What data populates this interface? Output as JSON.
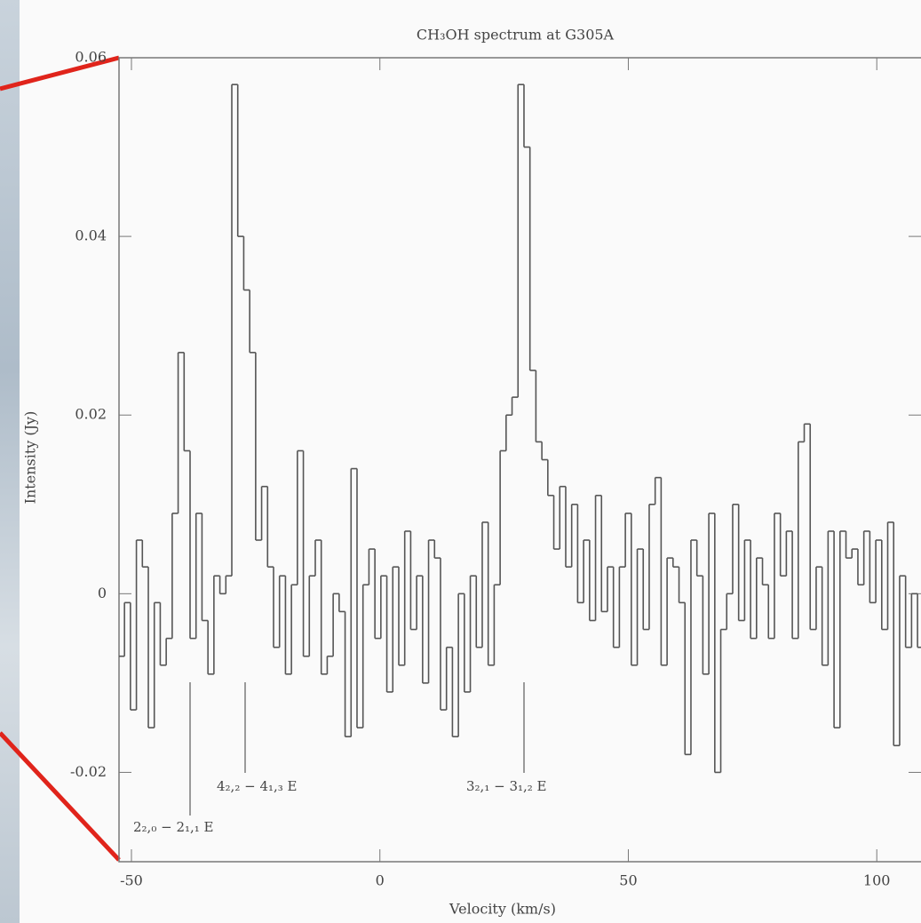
{
  "chart_data": {
    "type": "step",
    "title": "CH₃OH spectrum at G305A",
    "x_label": "Velocity (km/s)",
    "y_label": "Intensity (Jy)",
    "x": [
      -52.0,
      -50.8,
      -49.6,
      -48.4,
      -47.2,
      -46.0,
      -44.8,
      -43.6,
      -42.4,
      -41.2,
      -40.0,
      -38.8,
      -37.6,
      -36.4,
      -35.2,
      -34.0,
      -32.8,
      -31.6,
      -30.4,
      -29.2,
      -28.0,
      -26.8,
      -25.6,
      -24.4,
      -23.2,
      -22.0,
      -20.8,
      -19.6,
      -18.4,
      -17.2,
      -16.0,
      -14.8,
      -13.6,
      -12.4,
      -11.2,
      -10.0,
      -8.8,
      -7.6,
      -6.4,
      -5.2,
      -4.0,
      -2.8,
      -1.6,
      -0.4,
      0.8,
      2.0,
      3.2,
      4.4,
      5.6,
      6.8,
      8.0,
      9.2,
      10.4,
      11.6,
      12.8,
      14.0,
      15.2,
      16.4,
      17.6,
      18.8,
      20.0,
      21.2,
      22.4,
      23.6,
      24.8,
      26.0,
      27.2,
      28.4,
      29.6,
      30.8,
      32.0,
      33.2,
      34.4,
      35.6,
      36.8,
      38.0,
      39.2,
      40.4,
      41.6,
      42.8,
      44.0,
      45.2,
      46.4,
      47.6,
      48.8,
      50.0,
      51.2,
      52.4,
      53.6,
      54.8,
      56.0,
      57.2,
      58.4,
      59.6,
      60.8,
      62.0,
      63.2,
      64.4,
      65.6,
      66.8,
      68.0,
      69.2,
      70.4,
      71.6,
      72.8,
      74.0,
      75.2,
      76.4,
      77.6,
      78.8,
      80.0,
      81.2,
      82.4,
      83.6,
      84.8,
      86.0,
      87.2,
      88.4,
      89.6,
      90.8,
      92.0,
      93.2,
      94.4,
      95.6,
      96.8,
      98.0,
      99.2,
      100.4,
      101.6,
      102.8,
      104.0,
      105.2,
      106.4,
      107.6,
      108.8
    ],
    "values": [
      -0.007,
      -0.001,
      -0.013,
      0.006,
      0.003,
      -0.015,
      -0.001,
      -0.008,
      -0.005,
      0.009,
      0.027,
      0.016,
      -0.005,
      0.009,
      -0.003,
      -0.009,
      0.002,
      0.0,
      0.002,
      0.057,
      0.04,
      0.034,
      0.027,
      0.006,
      0.012,
      0.003,
      -0.006,
      0.002,
      -0.009,
      0.001,
      0.016,
      -0.007,
      0.002,
      0.006,
      -0.009,
      -0.007,
      0.0,
      -0.002,
      -0.016,
      0.014,
      -0.015,
      0.001,
      0.005,
      -0.005,
      0.002,
      -0.011,
      0.003,
      -0.008,
      0.007,
      -0.004,
      0.002,
      -0.01,
      0.006,
      0.004,
      -0.013,
      -0.006,
      -0.016,
      0.0,
      -0.011,
      0.002,
      -0.006,
      0.008,
      -0.008,
      0.001,
      0.016,
      0.02,
      0.022,
      0.057,
      0.05,
      0.025,
      0.017,
      0.015,
      0.011,
      0.005,
      0.012,
      0.003,
      0.01,
      -0.001,
      0.006,
      -0.003,
      0.011,
      -0.002,
      0.003,
      -0.006,
      0.003,
      0.009,
      -0.008,
      0.005,
      -0.004,
      0.01,
      0.013,
      -0.008,
      0.004,
      0.003,
      -0.001,
      -0.018,
      0.006,
      0.002,
      -0.009,
      0.009,
      -0.02,
      -0.004,
      0.0,
      0.01,
      -0.003,
      0.006,
      -0.005,
      0.004,
      0.001,
      -0.005,
      0.009,
      0.002,
      0.007,
      -0.005,
      0.017,
      0.019,
      -0.004,
      0.003,
      -0.008,
      0.007,
      -0.015,
      0.007,
      0.004,
      0.005,
      0.001,
      0.007,
      -0.001,
      0.006,
      -0.004,
      0.008,
      -0.017,
      0.002,
      -0.006,
      0.0,
      -0.006
    ],
    "color": "#555555",
    "xlim": [
      -52.5,
      108.9
    ],
    "ylim": [
      -0.03,
      0.06
    ],
    "xticks": [
      -50,
      0,
      50,
      100
    ],
    "yticks": [
      -0.02,
      0,
      0.02,
      0.04,
      0.06
    ],
    "grid": false,
    "annotations": [
      "2₂,₀ − 2₁,₁ E",
      "4₂,₂ − 4₁,₃ E",
      "3₂,₁ − 3₁,₂ E"
    ]
  }
}
